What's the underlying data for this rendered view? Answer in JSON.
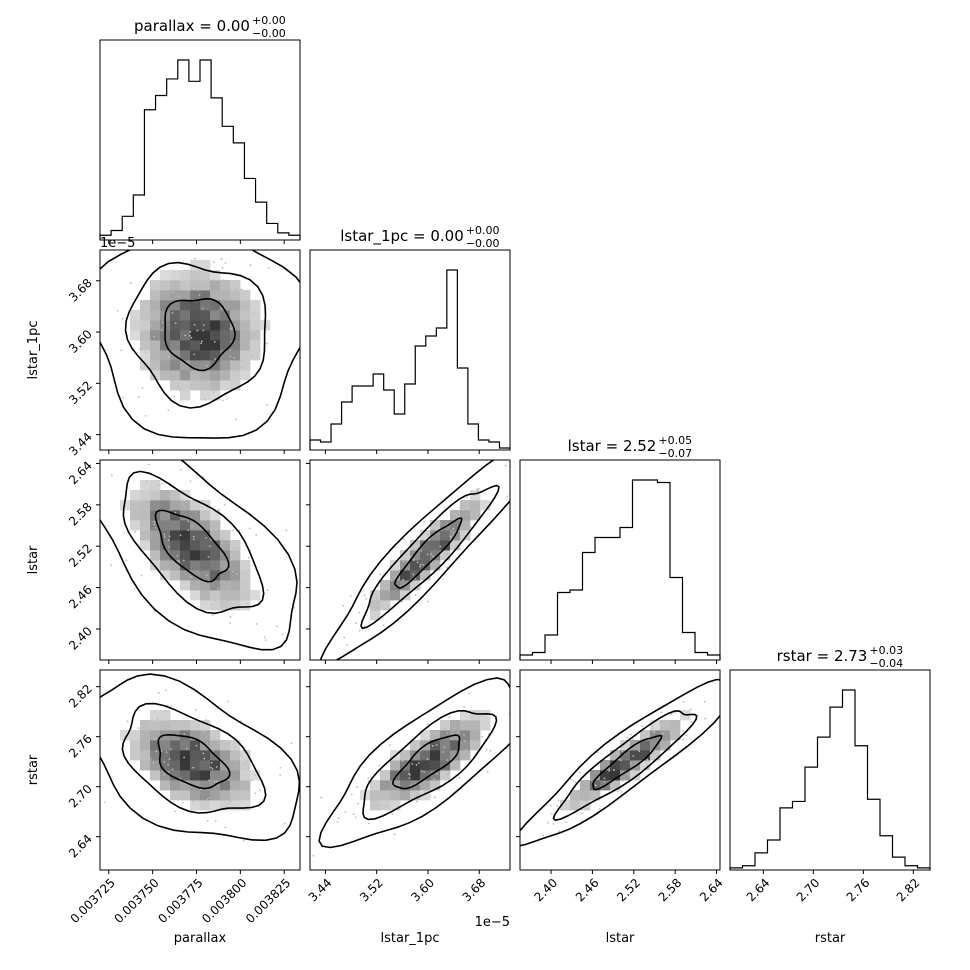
{
  "figure": {
    "panel_order": [
      "parallax",
      "lstar_1pc",
      "lstar",
      "rstar"
    ],
    "scale_offset_label": "1e−5"
  },
  "chart_data": {
    "type": "corner",
    "parameters": [
      {
        "name": "parallax",
        "title_prefix": "parallax = 0.00",
        "title_sup": "+0.00",
        "title_sub": "−0.00",
        "xlabel": "parallax",
        "range": [
          0.00372,
          0.003834
        ],
        "ticks": [
          0.003725,
          0.00375,
          0.003775,
          0.0038,
          0.003825
        ],
        "tick_labels": [
          "0.003725",
          "0.003750",
          "0.003775",
          "0.003800",
          "0.003825"
        ],
        "hist": [
          2,
          4,
          10,
          19,
          55,
          61,
          68,
          76,
          67,
          76,
          60,
          48,
          41,
          26,
          16,
          7,
          3,
          2
        ]
      },
      {
        "name": "lstar_1pc",
        "title_prefix": "lstar_1pc = 0.00",
        "title_sup": "+0.00",
        "title_sub": "−0.00",
        "xlabel": "lstar_1pc",
        "ylabel": "lstar_1pc",
        "range": [
          3.416,
          3.728
        ],
        "ticks": [
          3.44,
          3.52,
          3.6,
          3.68
        ],
        "tick_labels": [
          "3.44",
          "3.52",
          "3.60",
          "3.68"
        ],
        "hist": [
          5,
          4,
          13,
          24,
          32,
          32,
          38,
          30,
          18,
          33,
          52,
          57,
          61,
          90,
          41,
          13,
          5,
          4,
          1
        ]
      },
      {
        "name": "lstar",
        "title_prefix": "lstar = 2.52",
        "title_sup": "+0.05",
        "title_sub": "−0.07",
        "xlabel": "lstar",
        "ylabel": "lstar",
        "range": [
          2.355,
          2.645
        ],
        "ticks": [
          2.4,
          2.46,
          2.52,
          2.58,
          2.64
        ],
        "tick_labels": [
          "2.40",
          "2.46",
          "2.52",
          "2.58",
          "2.64"
        ],
        "hist": [
          2,
          3,
          10,
          27,
          28,
          43,
          49,
          49,
          53,
          72,
          72,
          71,
          33,
          11,
          3,
          2
        ]
      },
      {
        "name": "rstar",
        "title_prefix": "rstar = 2.73",
        "title_sup": "+0.03",
        "title_sub": "−0.04",
        "xlabel": "rstar",
        "ylabel": "rstar",
        "range": [
          2.6,
          2.84
        ],
        "ticks": [
          2.64,
          2.7,
          2.76,
          2.82
        ],
        "tick_labels": [
          "2.64",
          "2.70",
          "2.76",
          "2.82"
        ],
        "hist": [
          1,
          2,
          8,
          14,
          29,
          32,
          48,
          62,
          76,
          84,
          58,
          33,
          16,
          6,
          2,
          1
        ]
      }
    ],
    "pairs": [
      {
        "x": "parallax",
        "y": "lstar_1pc",
        "mean": [
          0.003776,
          3.6
        ],
        "sd": [
          2e-05,
          0.055
        ],
        "rho": -0.05
      },
      {
        "x": "parallax",
        "y": "lstar",
        "mean": [
          0.003772,
          2.52
        ],
        "sd": [
          2e-05,
          0.05
        ],
        "rho": -0.62
      },
      {
        "x": "lstar_1pc",
        "y": "lstar",
        "mean": [
          3.6,
          2.51
        ],
        "sd": [
          0.052,
          0.05
        ],
        "rho": 0.93
      },
      {
        "x": "parallax",
        "y": "rstar",
        "mean": [
          0.003772,
          2.73
        ],
        "sd": [
          2e-05,
          0.032
        ],
        "rho": -0.45
      },
      {
        "x": "lstar_1pc",
        "y": "rstar",
        "mean": [
          3.6,
          2.73
        ],
        "sd": [
          0.052,
          0.032
        ],
        "rho": 0.78
      },
      {
        "x": "lstar",
        "y": "rstar",
        "mean": [
          2.51,
          2.73
        ],
        "sd": [
          0.05,
          0.032
        ],
        "rho": 0.92
      }
    ],
    "contour_levels": [
      0.39,
      0.86,
      0.99
    ]
  }
}
